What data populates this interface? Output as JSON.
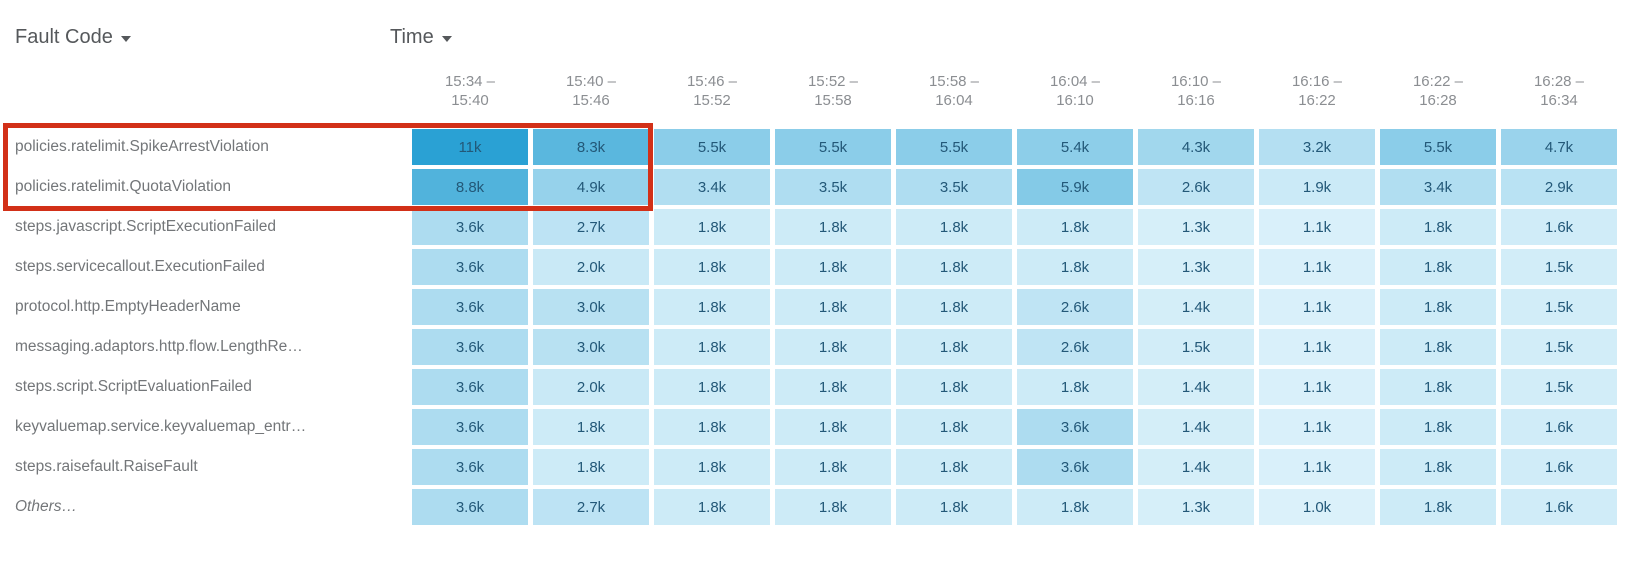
{
  "dimensions": {
    "row_label": "Fault Code",
    "col_label": "Time"
  },
  "chart_data": {
    "type": "heatmap",
    "title": "",
    "xlabel": "Time",
    "ylabel": "Fault Code",
    "value_unit": "k",
    "columns": [
      "15:34 – 15:40",
      "15:40 – 15:46",
      "15:46 – 15:52",
      "15:52 – 15:58",
      "15:58 – 16:04",
      "16:04 – 16:10",
      "16:10 – 16:16",
      "16:16 – 16:22",
      "16:22 – 16:28",
      "16:28 – 16:34"
    ],
    "rows": [
      {
        "label": "policies.ratelimit.SpikeArrestViolation",
        "values": [
          "11k",
          "8.3k",
          "5.5k",
          "5.5k",
          "5.5k",
          "5.4k",
          "4.3k",
          "3.2k",
          "5.5k",
          "4.7k"
        ]
      },
      {
        "label": "policies.ratelimit.QuotaViolation",
        "values": [
          "8.8k",
          "4.9k",
          "3.4k",
          "3.5k",
          "3.5k",
          "5.9k",
          "2.6k",
          "1.9k",
          "3.4k",
          "2.9k"
        ]
      },
      {
        "label": "steps.javascript.ScriptExecutionFailed",
        "values": [
          "3.6k",
          "2.7k",
          "1.8k",
          "1.8k",
          "1.8k",
          "1.8k",
          "1.3k",
          "1.1k",
          "1.8k",
          "1.6k"
        ]
      },
      {
        "label": "steps.servicecallout.ExecutionFailed",
        "values": [
          "3.6k",
          "2.0k",
          "1.8k",
          "1.8k",
          "1.8k",
          "1.8k",
          "1.3k",
          "1.1k",
          "1.8k",
          "1.5k"
        ]
      },
      {
        "label": "protocol.http.EmptyHeaderName",
        "values": [
          "3.6k",
          "3.0k",
          "1.8k",
          "1.8k",
          "1.8k",
          "2.6k",
          "1.4k",
          "1.1k",
          "1.8k",
          "1.5k"
        ]
      },
      {
        "label": "messaging.adaptors.http.flow.LengthRe…",
        "values": [
          "3.6k",
          "3.0k",
          "1.8k",
          "1.8k",
          "1.8k",
          "2.6k",
          "1.5k",
          "1.1k",
          "1.8k",
          "1.5k"
        ]
      },
      {
        "label": "steps.script.ScriptEvaluationFailed",
        "values": [
          "3.6k",
          "2.0k",
          "1.8k",
          "1.8k",
          "1.8k",
          "1.8k",
          "1.4k",
          "1.1k",
          "1.8k",
          "1.5k"
        ]
      },
      {
        "label": "keyvaluemap.service.keyvaluemap_entr…",
        "values": [
          "3.6k",
          "1.8k",
          "1.8k",
          "1.8k",
          "1.8k",
          "3.6k",
          "1.4k",
          "1.1k",
          "1.8k",
          "1.6k"
        ]
      },
      {
        "label": "steps.raisefault.RaiseFault",
        "values": [
          "3.6k",
          "1.8k",
          "1.8k",
          "1.8k",
          "1.8k",
          "3.6k",
          "1.4k",
          "1.1k",
          "1.8k",
          "1.6k"
        ]
      },
      {
        "label": "Others…",
        "italic": true,
        "values": [
          "3.6k",
          "2.7k",
          "1.8k",
          "1.8k",
          "1.8k",
          "1.8k",
          "1.3k",
          "1.0k",
          "1.8k",
          "1.6k"
        ]
      }
    ],
    "color_scale": {
      "min_value": 1.0,
      "max_value": 11,
      "min_color": "#dbf1fa",
      "max_color": "#2aa1d4"
    },
    "highlight": {
      "rows": [
        "policies.ratelimit.SpikeArrestViolation",
        "policies.ratelimit.QuotaViolation"
      ],
      "columns": [
        "15:34 – 15:40",
        "15:40 – 15:46"
      ],
      "border_color": "#d23018"
    }
  },
  "colors": {
    "dimension_header_text": "#55585b",
    "column_header_text": "#8b8e92",
    "row_label_text": "#737679",
    "cell_value_text": "#235878",
    "highlight_border": "#d23018"
  }
}
